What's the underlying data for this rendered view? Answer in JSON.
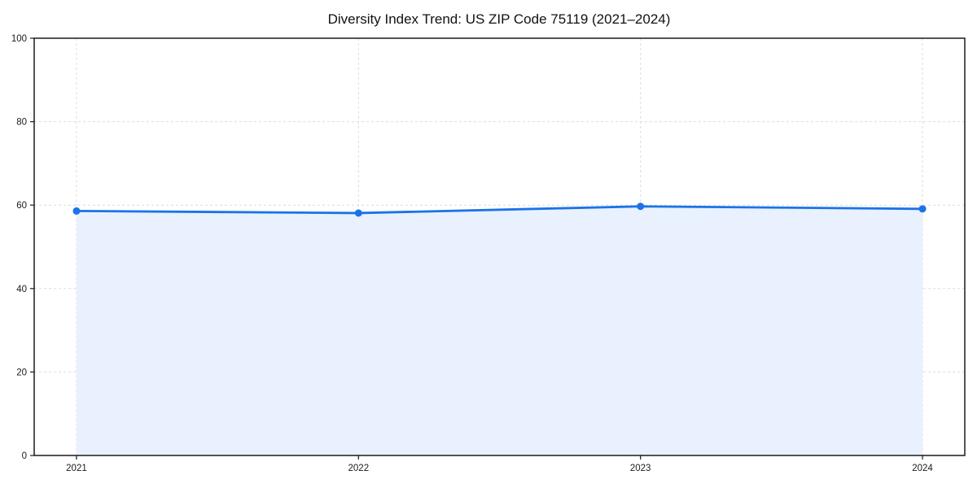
{
  "figure": {
    "background": "#ffffff"
  },
  "chart_data": {
    "type": "line",
    "area_fill": true,
    "title": "Diversity Index Trend: US ZIP Code 75119 (2021–2024)",
    "categories": [
      "2021",
      "2022",
      "2023",
      "2024"
    ],
    "series": [
      {
        "name": "Diversity Index",
        "values": [
          58.6,
          58.1,
          59.7,
          59.1
        ]
      }
    ],
    "xlabel": "",
    "ylabel": "",
    "ylim": [
      0,
      100
    ],
    "yticks": [
      0,
      20,
      40,
      60,
      80,
      100
    ],
    "grid": {
      "style": "dashed",
      "axes": "both",
      "vertical_at_categories": true
    },
    "legend": "none",
    "marker": "circle",
    "colors": {
      "line": "#1a73e8",
      "marker": "#1a73e8",
      "area": "#e8f1fd",
      "grid": "#dcdcdc",
      "spine": "#1a1a1a",
      "tick": "#1a1a1a",
      "tick_text": "#1a1a1a",
      "title_text": "#111111"
    }
  }
}
